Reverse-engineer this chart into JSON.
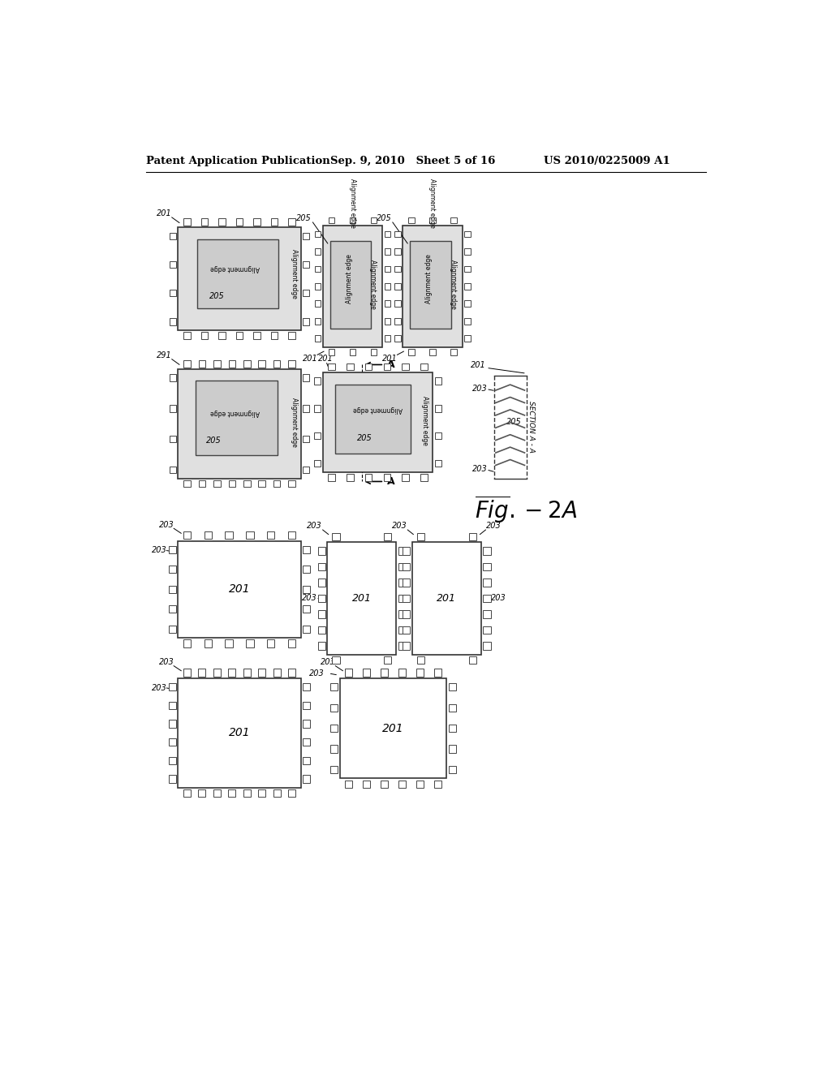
{
  "bg_color": "#ffffff",
  "header_left": "Patent Application Publication",
  "header_mid": "Sep. 9, 2010   Sheet 5 of 16",
  "header_right": "US 2010/0225009 A1"
}
